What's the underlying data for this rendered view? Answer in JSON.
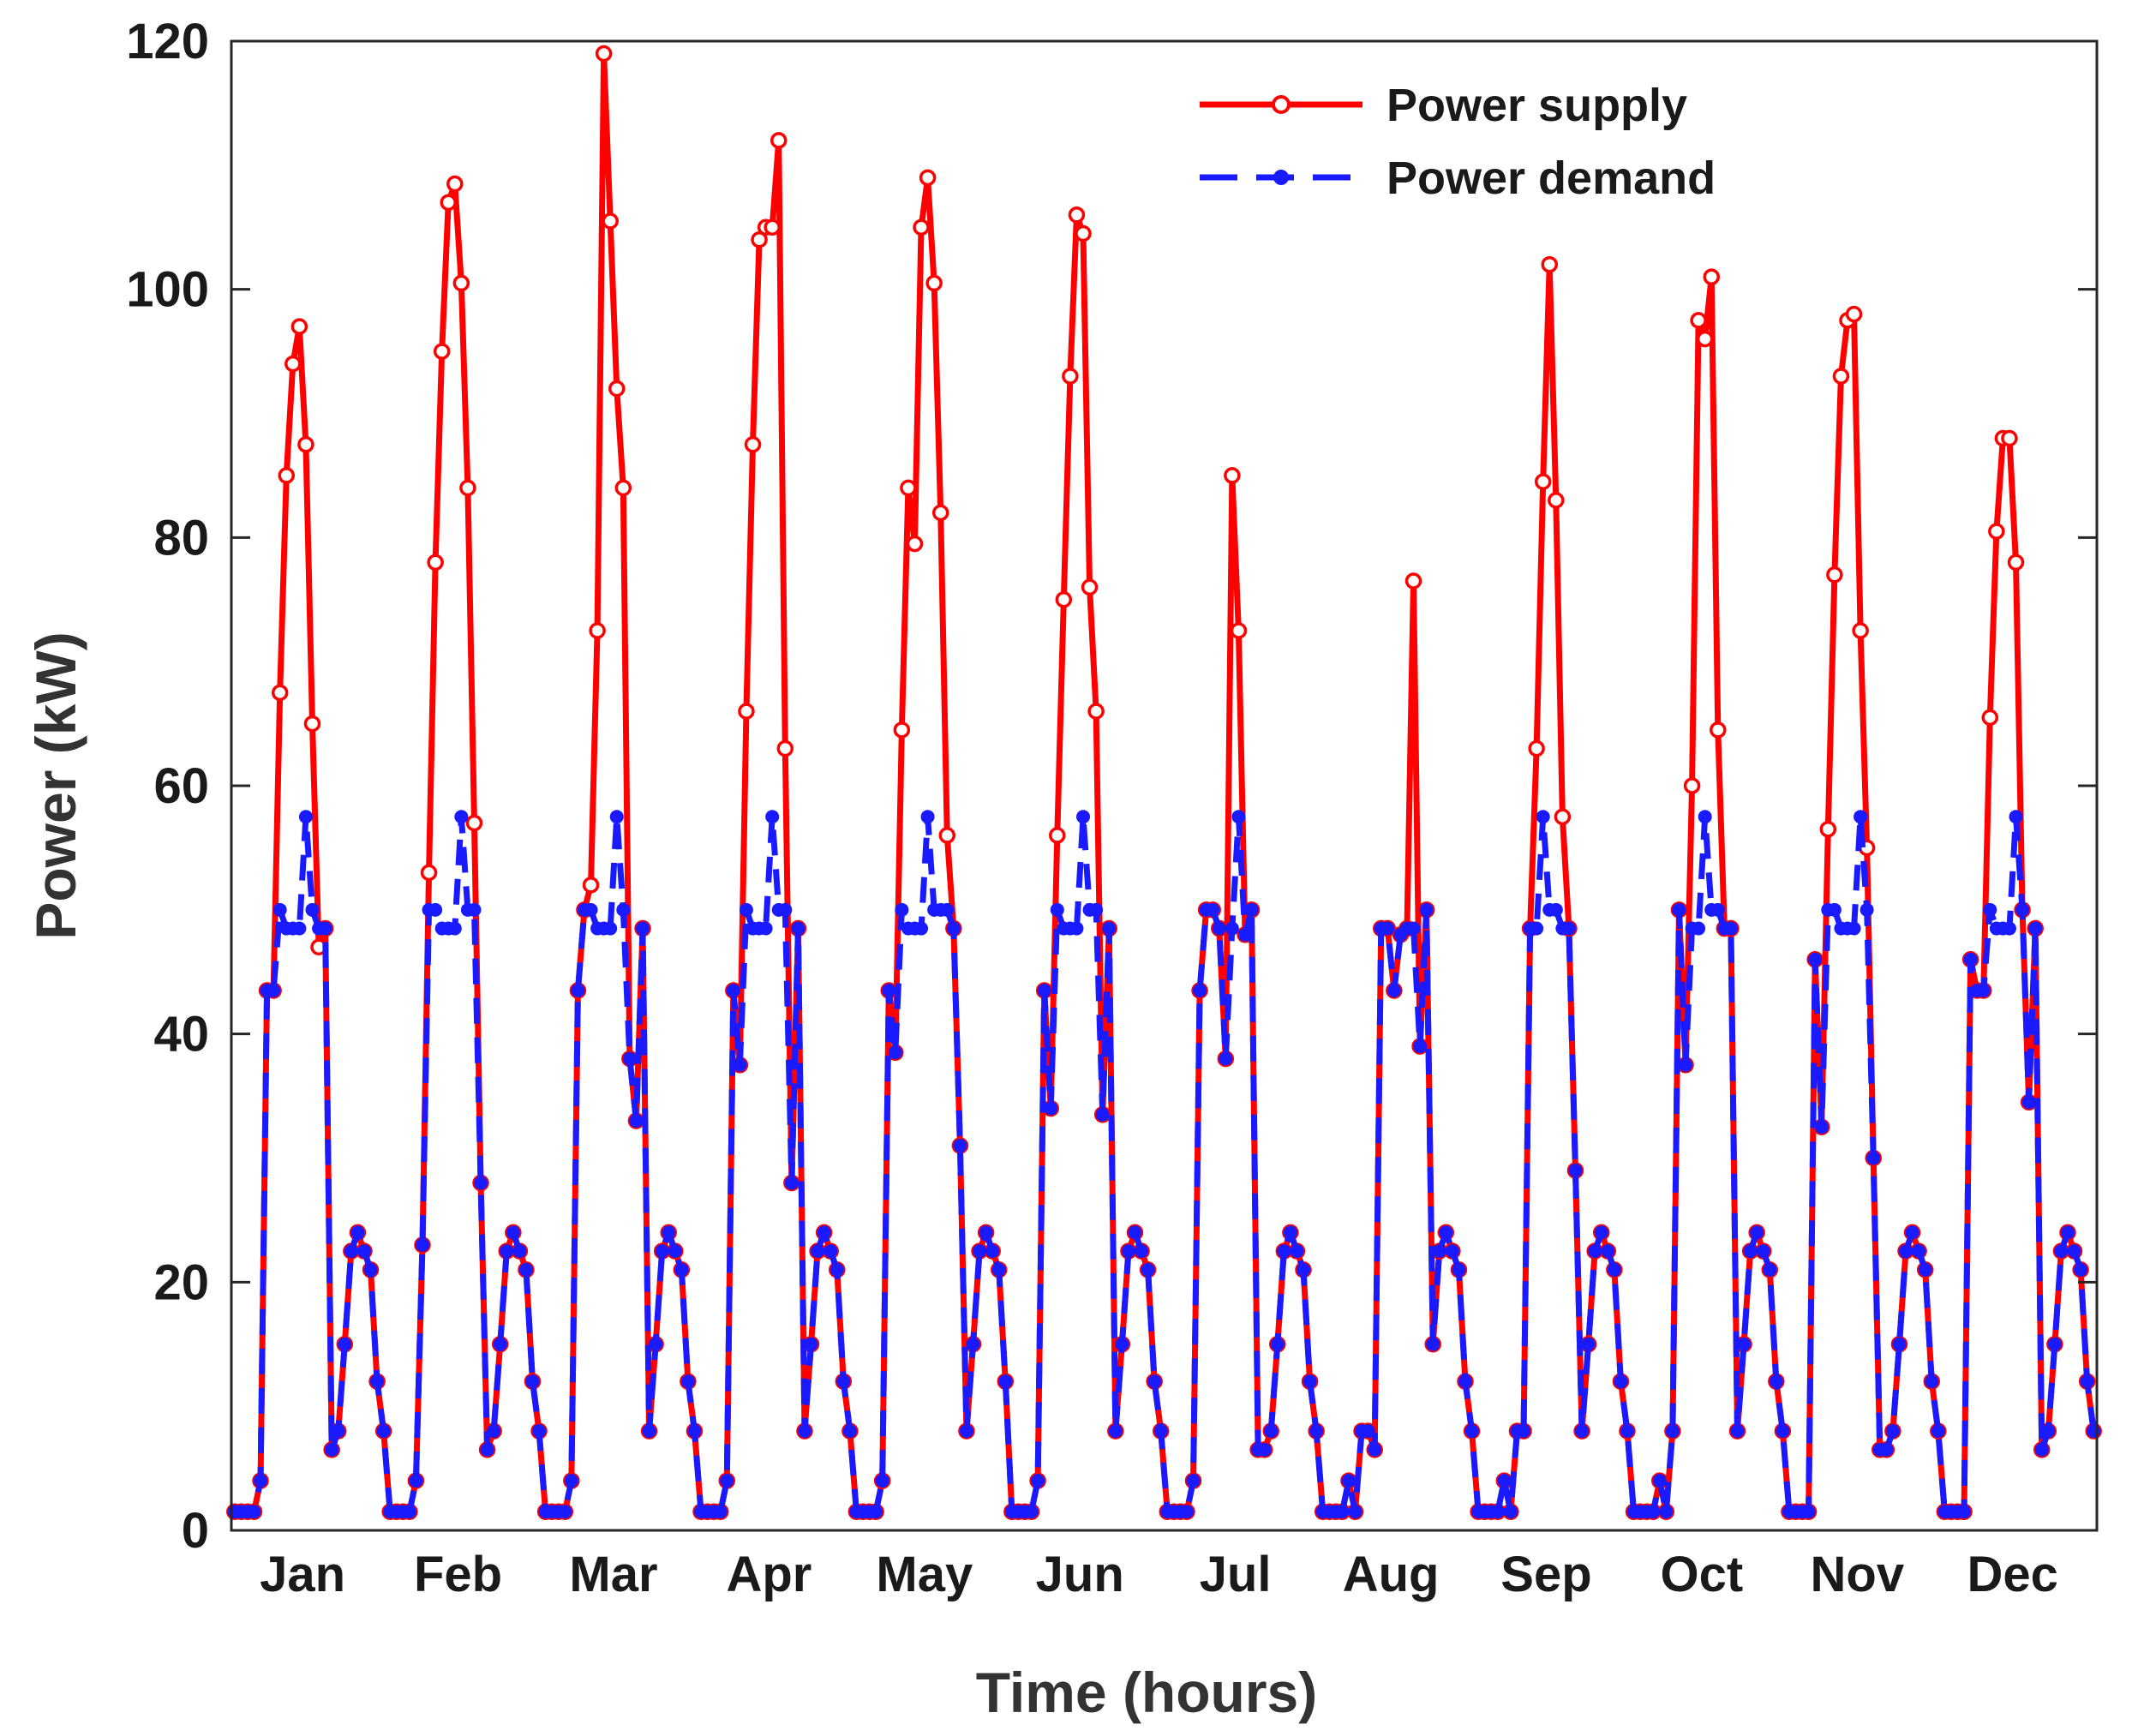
{
  "chart_data": {
    "type": "line",
    "title": "",
    "xlabel": "Time (hours)",
    "ylabel": "Power (kW)",
    "ylim": [
      0,
      120
    ],
    "yticks": [
      0,
      20,
      40,
      60,
      80,
      100,
      120
    ],
    "xlim": [
      0,
      288
    ],
    "grid": false,
    "legend_position": "top-right",
    "months": [
      "Jan",
      "Feb",
      "Mar",
      "Apr",
      "May",
      "Jun",
      "Jul",
      "Aug",
      "Sep",
      "Oct",
      "Nov",
      "Dec"
    ],
    "hours_per_month": 24,
    "series": [
      {
        "name": "Power supply",
        "color": "#ff0000",
        "line_style": "solid",
        "marker": "open-circle",
        "values_by_month": [
          [
            1.5,
            1.5,
            1.5,
            1.5,
            4,
            43.5,
            43.5,
            67.5,
            85,
            94,
            97,
            87.5,
            65,
            47,
            48.5,
            6.5,
            8,
            15,
            22.5,
            24,
            22.5,
            21,
            12,
            8
          ],
          [
            1.5,
            1.5,
            1.5,
            1.5,
            4,
            23,
            53,
            78,
            95,
            107,
            108.5,
            100.5,
            84,
            57,
            28,
            6.5,
            8,
            15,
            22.5,
            24,
            22.5,
            21,
            12,
            8
          ],
          [
            1.5,
            1.5,
            1.5,
            1.5,
            4,
            43.5,
            50,
            52,
            72.5,
            119,
            105.5,
            92,
            84,
            38,
            33,
            48.5,
            8,
            15,
            22.5,
            24,
            22.5,
            21,
            12,
            8
          ],
          [
            1.5,
            1.5,
            1.5,
            1.5,
            4,
            43.5,
            37.5,
            66,
            87.5,
            104,
            105,
            105,
            112,
            63,
            28,
            48.5,
            8,
            15,
            22.5,
            24,
            22.5,
            21,
            12,
            8
          ],
          [
            1.5,
            1.5,
            1.5,
            1.5,
            4,
            43.5,
            38.5,
            64.5,
            84,
            79.5,
            105,
            109,
            100.5,
            82,
            56,
            48.5,
            31,
            8,
            15,
            22.5,
            24,
            22.5,
            21,
            12
          ],
          [
            1.5,
            1.5,
            1.5,
            1.5,
            4,
            43.5,
            34,
            56,
            75,
            93,
            106,
            104.5,
            76,
            66,
            33.5,
            48.5,
            8,
            15,
            22.5,
            24,
            22.5,
            21,
            12,
            8
          ],
          [
            1.5,
            1.5,
            1.5,
            1.5,
            4,
            43.5,
            50,
            50,
            48.5,
            38,
            85,
            72.5,
            48,
            50,
            6.5,
            6.5,
            8,
            15,
            22.5,
            24,
            22.5,
            21,
            12,
            8
          ],
          [
            1.5,
            1.5,
            1.5,
            1.5,
            4,
            1.5,
            8,
            8,
            6.5,
            48.5,
            48.5,
            43.5,
            48,
            48.5,
            76.5,
            39,
            50,
            15,
            22.5,
            24,
            22.5,
            21,
            12,
            8
          ],
          [
            1.5,
            1.5,
            1.5,
            1.5,
            4,
            1.5,
            8,
            8,
            48.5,
            63,
            84.5,
            102,
            83,
            57.5,
            48.5,
            29,
            8,
            15,
            22.5,
            24,
            22.5,
            21,
            12,
            8
          ],
          [
            1.5,
            1.5,
            1.5,
            1.5,
            4,
            1.5,
            8,
            50,
            37.5,
            60,
            97.5,
            96,
            101,
            64.5,
            48.5,
            48.5,
            8,
            15,
            22.5,
            24,
            22.5,
            21,
            12,
            8
          ],
          [
            1.5,
            1.5,
            1.5,
            1.5,
            46,
            32.5,
            56.5,
            77,
            93,
            97.5,
            98,
            72.5,
            55,
            30,
            6.5,
            6.5,
            8,
            15,
            22.5,
            24,
            22.5,
            21,
            12,
            8
          ],
          [
            1.5,
            1.5,
            1.5,
            1.5,
            46,
            43.5,
            43.5,
            65.5,
            80.5,
            88,
            88,
            78,
            50,
            34.5,
            48.5,
            6.5,
            8,
            15,
            22.5,
            24,
            22.5,
            21,
            12,
            8
          ]
        ]
      },
      {
        "name": "Power demand",
        "color": "#1a1aff",
        "line_style": "dashed",
        "marker": "filled-dot",
        "values_by_month": [
          [
            1.5,
            1.5,
            1.5,
            1.5,
            4,
            43.5,
            43.5,
            50,
            48.5,
            48.5,
            48.5,
            57.5,
            50,
            48.5,
            48.5,
            6.5,
            8,
            15,
            22.5,
            24,
            22.5,
            21,
            12,
            8
          ],
          [
            1.5,
            1.5,
            1.5,
            1.5,
            4,
            23,
            50,
            50,
            48.5,
            48.5,
            48.5,
            57.5,
            50,
            50,
            28,
            6.5,
            8,
            15,
            22.5,
            24,
            22.5,
            21,
            12,
            8
          ],
          [
            1.5,
            1.5,
            1.5,
            1.5,
            4,
            43.5,
            50,
            50,
            48.5,
            48.5,
            48.5,
            57.5,
            50,
            38,
            33,
            48.5,
            8,
            15,
            22.5,
            24,
            22.5,
            21,
            12,
            8
          ],
          [
            1.5,
            1.5,
            1.5,
            1.5,
            4,
            43.5,
            37.5,
            50,
            48.5,
            48.5,
            48.5,
            57.5,
            50,
            50,
            28,
            48.5,
            8,
            15,
            22.5,
            24,
            22.5,
            21,
            12,
            8
          ],
          [
            1.5,
            1.5,
            1.5,
            1.5,
            4,
            43.5,
            38.5,
            50,
            48.5,
            48.5,
            48.5,
            57.5,
            50,
            50,
            50,
            48.5,
            31,
            8,
            15,
            22.5,
            24,
            22.5,
            21,
            12
          ],
          [
            1.5,
            1.5,
            1.5,
            1.5,
            4,
            43.5,
            34,
            50,
            48.5,
            48.5,
            48.5,
            57.5,
            50,
            50,
            33.5,
            48.5,
            8,
            15,
            22.5,
            24,
            22.5,
            21,
            12,
            8
          ],
          [
            1.5,
            1.5,
            1.5,
            1.5,
            4,
            43.5,
            50,
            50,
            48.5,
            38,
            48.5,
            57.5,
            48,
            50,
            6.5,
            6.5,
            8,
            15,
            22.5,
            24,
            22.5,
            21,
            12,
            8
          ],
          [
            1.5,
            1.5,
            1.5,
            1.5,
            4,
            1.5,
            8,
            8,
            6.5,
            48.5,
            48.5,
            43.5,
            48,
            48.5,
            48.5,
            39,
            50,
            15,
            22.5,
            24,
            22.5,
            21,
            12,
            8
          ],
          [
            1.5,
            1.5,
            1.5,
            1.5,
            4,
            1.5,
            8,
            8,
            48.5,
            48.5,
            57.5,
            50,
            50,
            48.5,
            48.5,
            29,
            8,
            15,
            22.5,
            24,
            22.5,
            21,
            12,
            8
          ],
          [
            1.5,
            1.5,
            1.5,
            1.5,
            4,
            1.5,
            8,
            50,
            37.5,
            48.5,
            48.5,
            57.5,
            50,
            50,
            48.5,
            48.5,
            8,
            15,
            22.5,
            24,
            22.5,
            21,
            12,
            8
          ],
          [
            1.5,
            1.5,
            1.5,
            1.5,
            46,
            32.5,
            50,
            50,
            48.5,
            48.5,
            48.5,
            57.5,
            50,
            30,
            6.5,
            6.5,
            8,
            15,
            22.5,
            24,
            22.5,
            21,
            12,
            8
          ],
          [
            1.5,
            1.5,
            1.5,
            1.5,
            46,
            43.5,
            43.5,
            50,
            48.5,
            48.5,
            48.5,
            57.5,
            50,
            34.5,
            48.5,
            6.5,
            8,
            15,
            22.5,
            24,
            22.5,
            21,
            12,
            8
          ]
        ]
      }
    ]
  }
}
